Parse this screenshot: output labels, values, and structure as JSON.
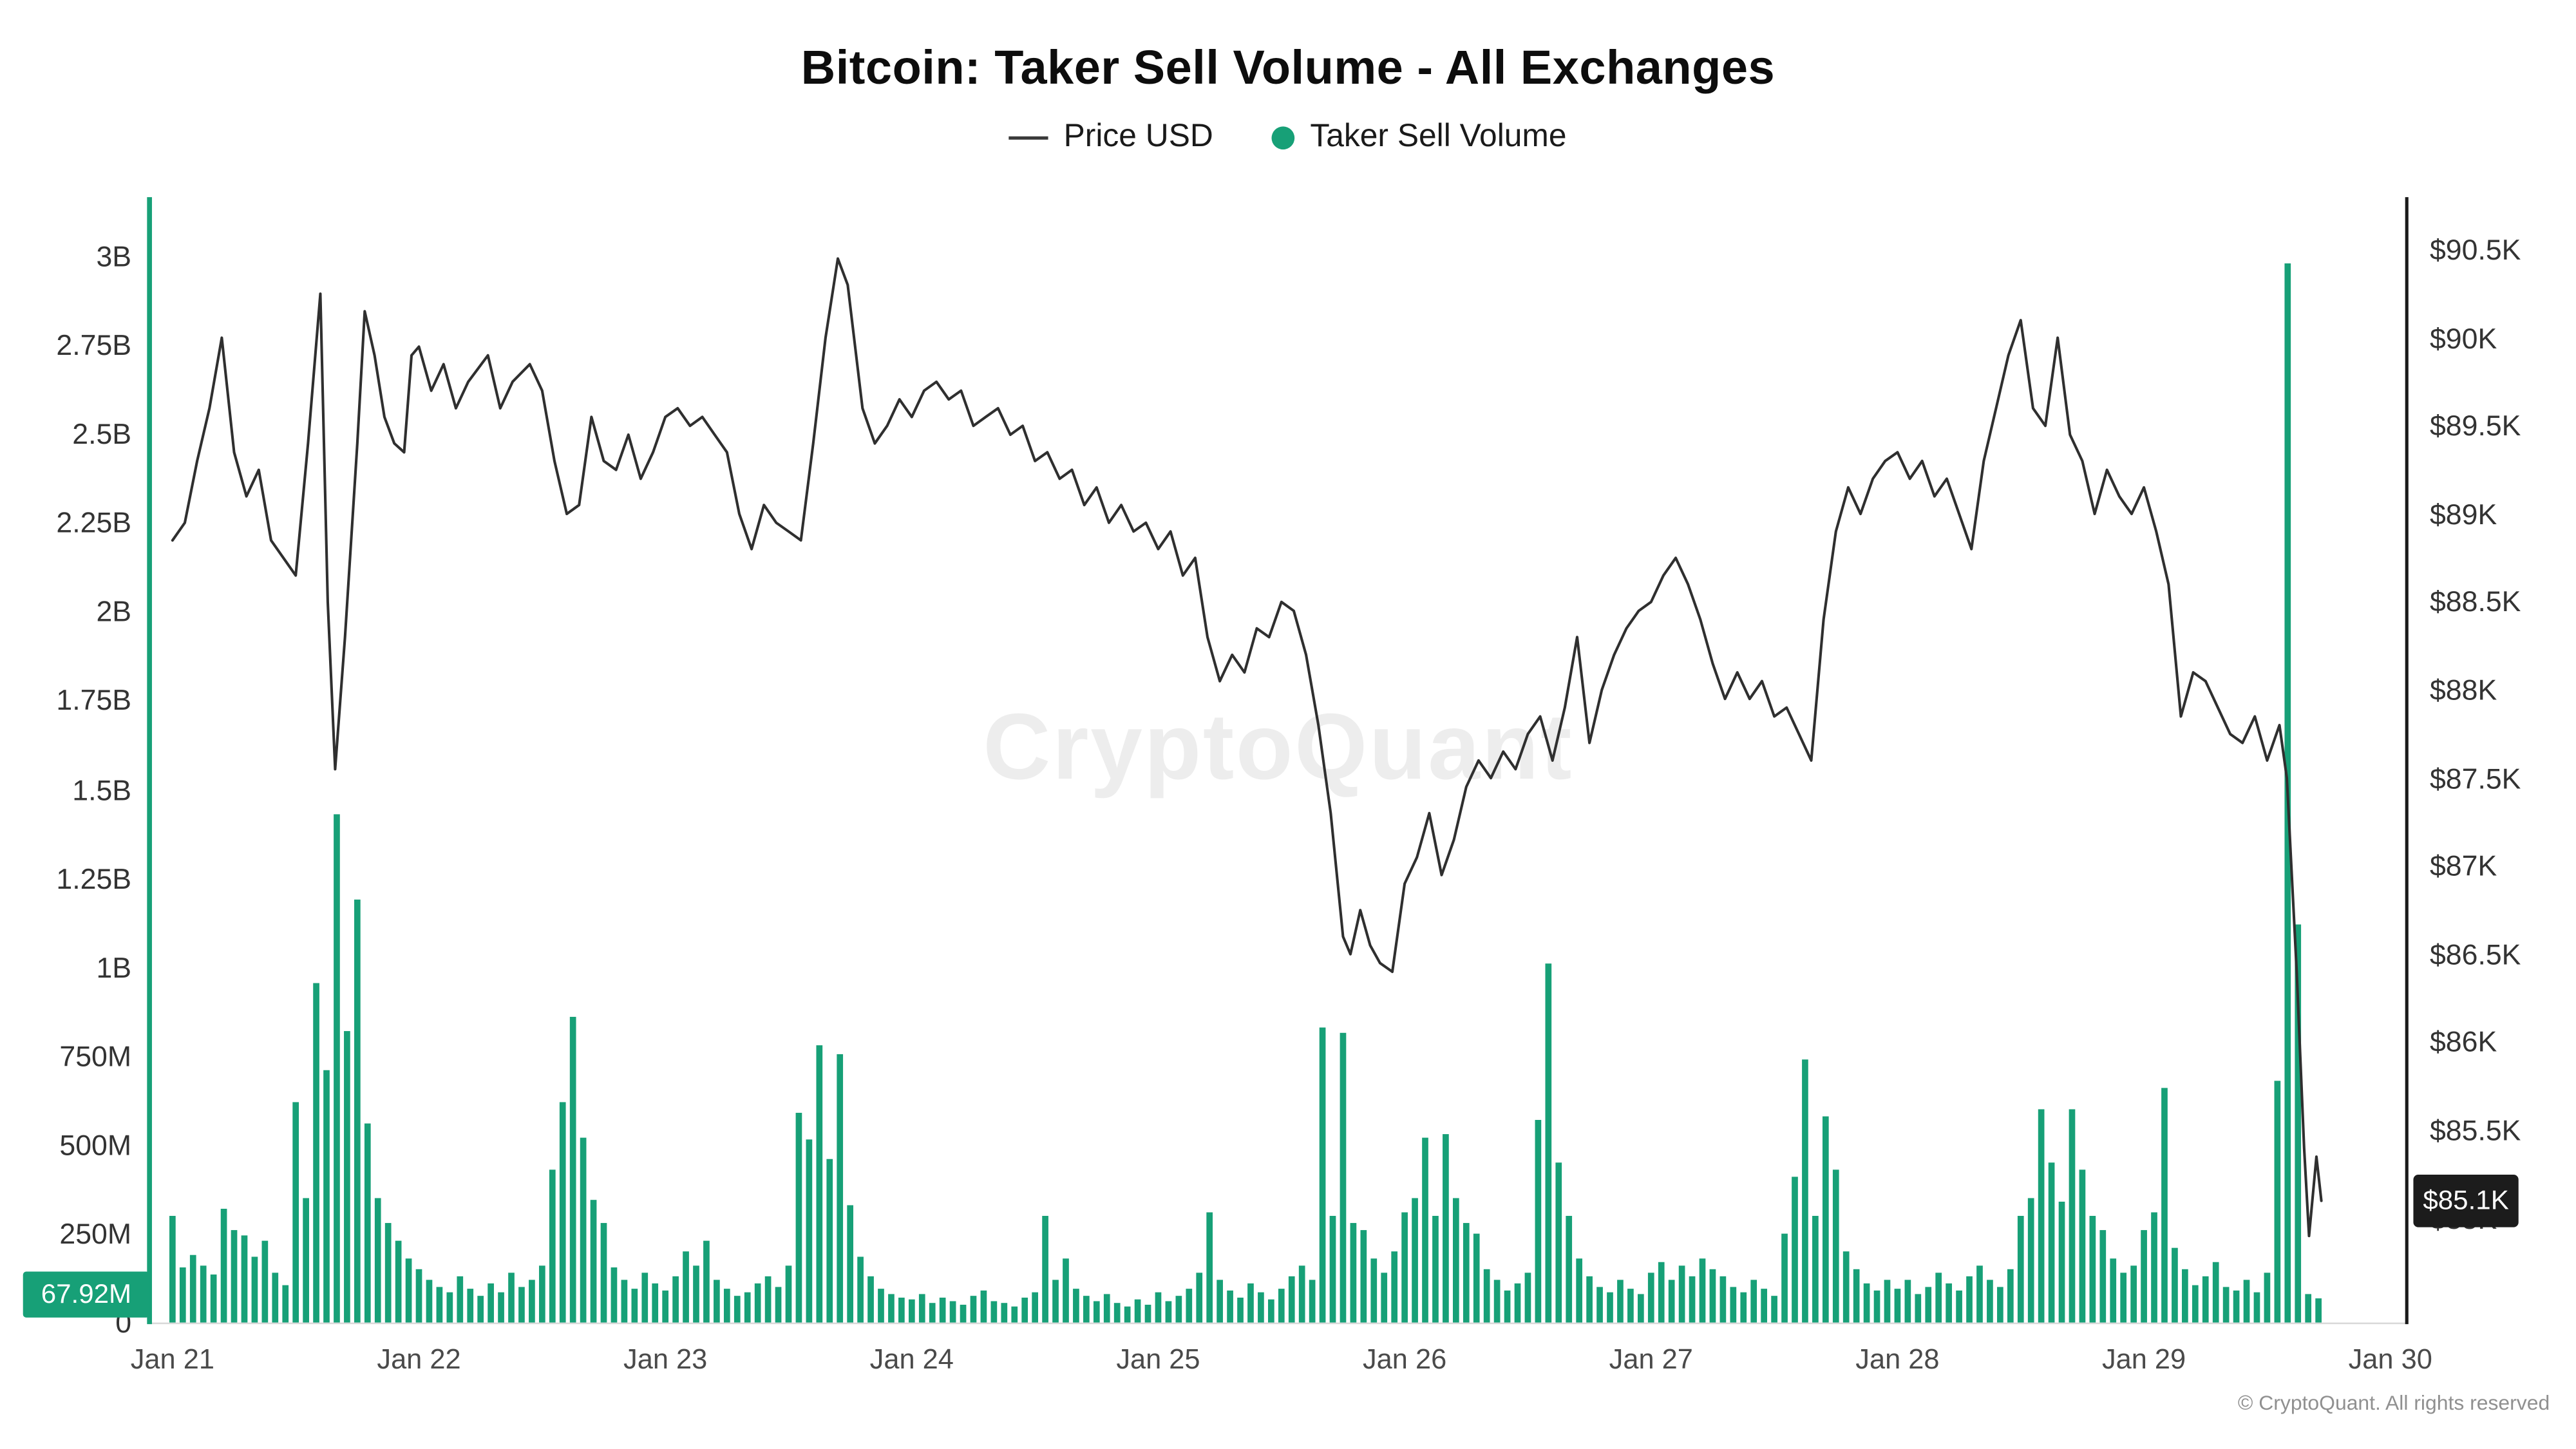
{
  "title": "Bitcoin: Taker Sell Volume - All Exchanges",
  "legend": {
    "price_label": "Price USD",
    "volume_label": "Taker Sell Volume"
  },
  "watermark": "CryptoQuant",
  "footer": "© CryptoQuant. All rights reserved",
  "colors": {
    "green": "#17A077",
    "price_line": "#2f2f2f",
    "badge_black": "#1c1c1c",
    "baseline_gray": "#d9d9d9",
    "right_axis_black": "#1a1a1a"
  },
  "chart_data": {
    "type": "combo",
    "title": "Bitcoin: Taker Sell Volume - All Exchanges",
    "x_axis": {
      "labels": [
        "Jan 21",
        "Jan 22",
        "Jan 23",
        "Jan 24",
        "Jan 25",
        "Jan 26",
        "Jan 27",
        "Jan 28",
        "Jan 29",
        "Jan 30"
      ],
      "unit": "date"
    },
    "left_axis": {
      "title": "Taker Sell Volume",
      "labels": [
        "3B",
        "2.75B",
        "2.5B",
        "2.25B",
        "2B",
        "1.75B",
        "1.5B",
        "1.25B",
        "1B",
        "750M",
        "500M",
        "250M",
        "0"
      ],
      "min": 0,
      "max": 3000000000
    },
    "right_axis": {
      "title": "Price USD",
      "labels": [
        "$90.5K",
        "$90K",
        "$89.5K",
        "$89K",
        "$88.5K",
        "$88K",
        "$87.5K",
        "$87K",
        "$86.5K",
        "$86K",
        "$85.5K",
        "$85K"
      ],
      "min_visible": 85000,
      "max_visible": 90500
    },
    "latest": {
      "taker_sell_volume": "67.92M",
      "price": "$85.1K"
    },
    "series": [
      {
        "name": "Taker Sell Volume",
        "type": "bar",
        "axis": "left",
        "color": "#17A077",
        "values_unit": "millions_usd",
        "x_unit": "days_since_jan_21",
        "interval_days": 0.0416667,
        "values": [
          300,
          155,
          190,
          160,
          135,
          320,
          260,
          245,
          185,
          230,
          140,
          105,
          620,
          350,
          955,
          710,
          1430,
          820,
          1190,
          560,
          350,
          280,
          230,
          180,
          150,
          120,
          100,
          85,
          130,
          95,
          75,
          110,
          85,
          140,
          100,
          120,
          160,
          430,
          620,
          860,
          520,
          345,
          280,
          155,
          120,
          95,
          140,
          110,
          90,
          130,
          200,
          160,
          230,
          120,
          95,
          75,
          85,
          110,
          130,
          100,
          160,
          590,
          515,
          780,
          460,
          755,
          330,
          185,
          130,
          95,
          80,
          70,
          65,
          80,
          55,
          70,
          60,
          50,
          75,
          90,
          60,
          55,
          45,
          70,
          85,
          300,
          120,
          180,
          95,
          75,
          60,
          80,
          55,
          45,
          65,
          50,
          85,
          60,
          75,
          95,
          140,
          310,
          120,
          90,
          70,
          110,
          85,
          65,
          95,
          130,
          160,
          120,
          830,
          300,
          815,
          280,
          260,
          180,
          140,
          200,
          310,
          350,
          520,
          300,
          530,
          350,
          280,
          250,
          150,
          120,
          90,
          110,
          140,
          570,
          1010,
          450,
          300,
          180,
          130,
          100,
          85,
          120,
          95,
          80,
          140,
          170,
          120,
          160,
          130,
          180,
          150,
          130,
          100,
          85,
          120,
          95,
          75,
          250,
          410,
          740,
          300,
          580,
          430,
          200,
          150,
          110,
          90,
          120,
          95,
          120,
          80,
          100,
          140,
          110,
          90,
          130,
          160,
          120,
          100,
          150,
          300,
          350,
          600,
          450,
          340,
          600,
          430,
          300,
          260,
          180,
          140,
          160,
          260,
          310,
          660,
          210,
          150,
          105,
          130,
          170,
          100,
          90,
          120,
          85,
          140,
          680,
          2980,
          1120,
          80,
          67.92
        ]
      },
      {
        "name": "Price USD",
        "type": "line",
        "axis": "right",
        "color": "#2f2f2f",
        "values_unit": "thousands_usd",
        "points": [
          [
            0.0,
            88.85
          ],
          [
            0.05,
            88.95
          ],
          [
            0.1,
            89.3
          ],
          [
            0.15,
            89.6
          ],
          [
            0.2,
            90.0
          ],
          [
            0.25,
            89.35
          ],
          [
            0.3,
            89.1
          ],
          [
            0.35,
            89.25
          ],
          [
            0.4,
            88.85
          ],
          [
            0.45,
            88.75
          ],
          [
            0.5,
            88.65
          ],
          [
            0.55,
            89.4
          ],
          [
            0.6,
            90.25
          ],
          [
            0.63,
            88.5
          ],
          [
            0.66,
            87.55
          ],
          [
            0.7,
            88.3
          ],
          [
            0.75,
            89.4
          ],
          [
            0.78,
            90.15
          ],
          [
            0.82,
            89.9
          ],
          [
            0.86,
            89.55
          ],
          [
            0.9,
            89.4
          ],
          [
            0.94,
            89.35
          ],
          [
            0.97,
            89.9
          ],
          [
            1.0,
            89.95
          ],
          [
            1.05,
            89.7
          ],
          [
            1.1,
            89.85
          ],
          [
            1.15,
            89.6
          ],
          [
            1.2,
            89.75
          ],
          [
            1.28,
            89.9
          ],
          [
            1.33,
            89.6
          ],
          [
            1.38,
            89.75
          ],
          [
            1.45,
            89.85
          ],
          [
            1.5,
            89.7
          ],
          [
            1.55,
            89.3
          ],
          [
            1.6,
            89.0
          ],
          [
            1.65,
            89.05
          ],
          [
            1.7,
            89.55
          ],
          [
            1.75,
            89.3
          ],
          [
            1.8,
            89.25
          ],
          [
            1.85,
            89.45
          ],
          [
            1.9,
            89.2
          ],
          [
            1.95,
            89.35
          ],
          [
            2.0,
            89.55
          ],
          [
            2.05,
            89.6
          ],
          [
            2.1,
            89.5
          ],
          [
            2.15,
            89.55
          ],
          [
            2.2,
            89.45
          ],
          [
            2.25,
            89.35
          ],
          [
            2.3,
            89.0
          ],
          [
            2.35,
            88.8
          ],
          [
            2.4,
            89.05
          ],
          [
            2.45,
            88.95
          ],
          [
            2.5,
            88.9
          ],
          [
            2.55,
            88.85
          ],
          [
            2.6,
            89.4
          ],
          [
            2.65,
            90.0
          ],
          [
            2.7,
            90.45
          ],
          [
            2.74,
            90.3
          ],
          [
            2.8,
            89.6
          ],
          [
            2.85,
            89.4
          ],
          [
            2.9,
            89.5
          ],
          [
            2.95,
            89.65
          ],
          [
            3.0,
            89.55
          ],
          [
            3.05,
            89.7
          ],
          [
            3.1,
            89.75
          ],
          [
            3.15,
            89.65
          ],
          [
            3.2,
            89.7
          ],
          [
            3.25,
            89.5
          ],
          [
            3.3,
            89.55
          ],
          [
            3.35,
            89.6
          ],
          [
            3.4,
            89.45
          ],
          [
            3.45,
            89.5
          ],
          [
            3.5,
            89.3
          ],
          [
            3.55,
            89.35
          ],
          [
            3.6,
            89.2
          ],
          [
            3.65,
            89.25
          ],
          [
            3.7,
            89.05
          ],
          [
            3.75,
            89.15
          ],
          [
            3.8,
            88.95
          ],
          [
            3.85,
            89.05
          ],
          [
            3.9,
            88.9
          ],
          [
            3.95,
            88.95
          ],
          [
            4.0,
            88.8
          ],
          [
            4.05,
            88.9
          ],
          [
            4.1,
            88.65
          ],
          [
            4.15,
            88.75
          ],
          [
            4.2,
            88.3
          ],
          [
            4.25,
            88.05
          ],
          [
            4.3,
            88.2
          ],
          [
            4.35,
            88.1
          ],
          [
            4.4,
            88.35
          ],
          [
            4.45,
            88.3
          ],
          [
            4.5,
            88.5
          ],
          [
            4.55,
            88.45
          ],
          [
            4.6,
            88.2
          ],
          [
            4.65,
            87.8
          ],
          [
            4.7,
            87.3
          ],
          [
            4.75,
            86.6
          ],
          [
            4.78,
            86.5
          ],
          [
            4.82,
            86.75
          ],
          [
            4.86,
            86.55
          ],
          [
            4.9,
            86.45
          ],
          [
            4.95,
            86.4
          ],
          [
            5.0,
            86.9
          ],
          [
            5.05,
            87.05
          ],
          [
            5.1,
            87.3
          ],
          [
            5.15,
            86.95
          ],
          [
            5.2,
            87.15
          ],
          [
            5.25,
            87.45
          ],
          [
            5.3,
            87.6
          ],
          [
            5.35,
            87.5
          ],
          [
            5.4,
            87.65
          ],
          [
            5.45,
            87.55
          ],
          [
            5.5,
            87.75
          ],
          [
            5.55,
            87.85
          ],
          [
            5.6,
            87.6
          ],
          [
            5.65,
            87.9
          ],
          [
            5.7,
            88.3
          ],
          [
            5.75,
            87.7
          ],
          [
            5.8,
            88.0
          ],
          [
            5.85,
            88.2
          ],
          [
            5.9,
            88.35
          ],
          [
            5.95,
            88.45
          ],
          [
            6.0,
            88.5
          ],
          [
            6.05,
            88.65
          ],
          [
            6.1,
            88.75
          ],
          [
            6.15,
            88.6
          ],
          [
            6.2,
            88.4
          ],
          [
            6.25,
            88.15
          ],
          [
            6.3,
            87.95
          ],
          [
            6.35,
            88.1
          ],
          [
            6.4,
            87.95
          ],
          [
            6.45,
            88.05
          ],
          [
            6.5,
            87.85
          ],
          [
            6.55,
            87.9
          ],
          [
            6.6,
            87.75
          ],
          [
            6.65,
            87.6
          ],
          [
            6.7,
            88.4
          ],
          [
            6.75,
            88.9
          ],
          [
            6.8,
            89.15
          ],
          [
            6.85,
            89.0
          ],
          [
            6.9,
            89.2
          ],
          [
            6.95,
            89.3
          ],
          [
            7.0,
            89.35
          ],
          [
            7.05,
            89.2
          ],
          [
            7.1,
            89.3
          ],
          [
            7.15,
            89.1
          ],
          [
            7.2,
            89.2
          ],
          [
            7.25,
            89.0
          ],
          [
            7.3,
            88.8
          ],
          [
            7.35,
            89.3
          ],
          [
            7.4,
            89.6
          ],
          [
            7.45,
            89.9
          ],
          [
            7.5,
            90.1
          ],
          [
            7.55,
            89.6
          ],
          [
            7.6,
            89.5
          ],
          [
            7.65,
            90.0
          ],
          [
            7.7,
            89.45
          ],
          [
            7.75,
            89.3
          ],
          [
            7.8,
            89.0
          ],
          [
            7.85,
            89.25
          ],
          [
            7.9,
            89.1
          ],
          [
            7.95,
            89.0
          ],
          [
            8.0,
            89.15
          ],
          [
            8.05,
            88.9
          ],
          [
            8.1,
            88.6
          ],
          [
            8.15,
            87.85
          ],
          [
            8.2,
            88.1
          ],
          [
            8.25,
            88.05
          ],
          [
            8.3,
            87.9
          ],
          [
            8.35,
            87.75
          ],
          [
            8.4,
            87.7
          ],
          [
            8.45,
            87.85
          ],
          [
            8.5,
            87.6
          ],
          [
            8.55,
            87.8
          ],
          [
            8.58,
            87.5
          ],
          [
            8.62,
            86.4
          ],
          [
            8.65,
            85.4
          ],
          [
            8.67,
            84.9
          ],
          [
            8.7,
            85.35
          ],
          [
            8.72,
            85.1
          ]
        ]
      }
    ]
  }
}
